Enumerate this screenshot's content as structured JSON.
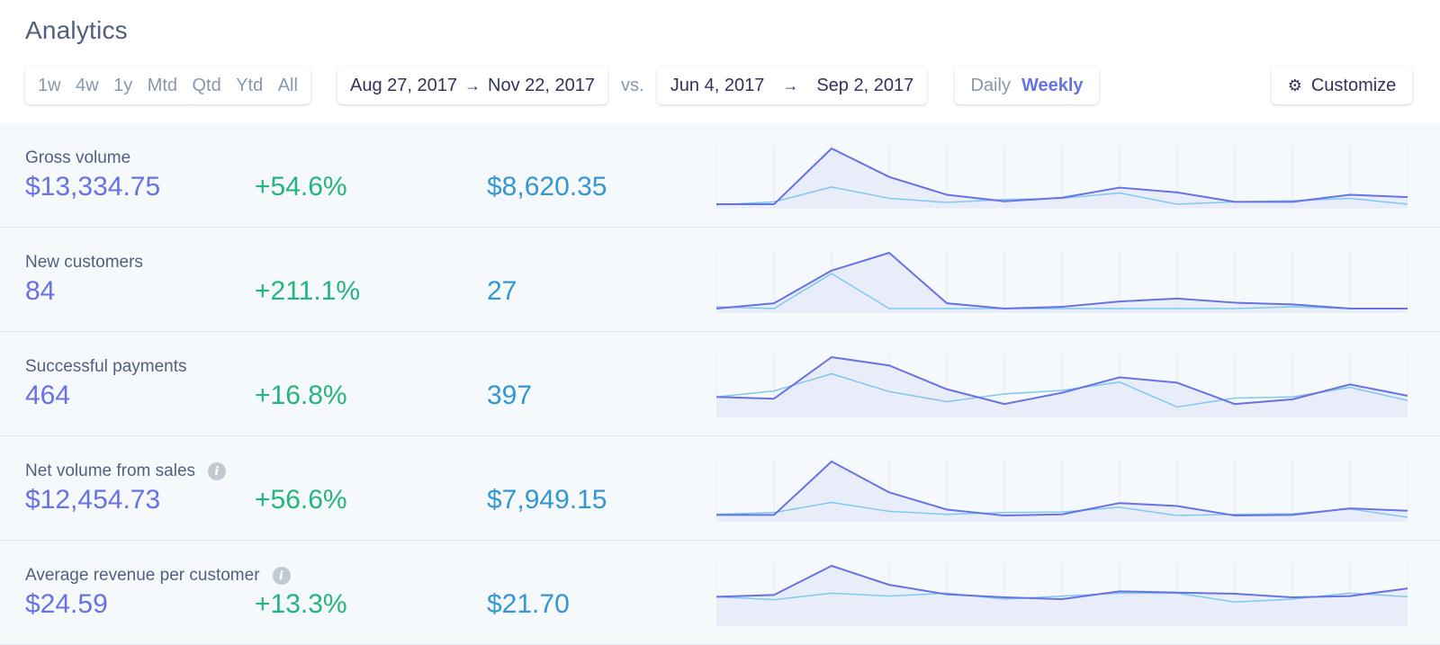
{
  "page": {
    "title": "Analytics"
  },
  "toolbar": {
    "ranges": [
      "1w",
      "4w",
      "1y",
      "Mtd",
      "Qtd",
      "Ytd",
      "All"
    ],
    "current_range": {
      "start": "Aug 27, 2017",
      "end": "Nov 22, 2017"
    },
    "vs_label": "vs.",
    "compare_range": {
      "start": "Jun 4, 2017",
      "end": "Sep 2, 2017"
    },
    "granularity": {
      "daily": "Daily",
      "weekly": "Weekly",
      "selected": "Weekly"
    },
    "customize_label": "Customize"
  },
  "colors": {
    "current_series": "#6772e5",
    "previous_series": "#7fc8f0",
    "area_fill": "#e6ebf8",
    "change_positive": "#24b47e",
    "previous_value": "#3297d3"
  },
  "metrics": [
    {
      "name": "Gross volume",
      "info": false,
      "current": "$13,334.75",
      "change": "+54.6%",
      "previous": "$8,620.35",
      "chart_data": {
        "type": "line",
        "series": [
          {
            "values": [
              0.06,
              0.06,
              1.0,
              0.52,
              0.22,
              0.11,
              0.17,
              0.34,
              0.26,
              0.1,
              0.1,
              0.22,
              0.18
            ]
          },
          {
            "values": [
              0.05,
              0.1,
              0.35,
              0.16,
              0.09,
              0.14,
              0.16,
              0.25,
              0.06,
              0.1,
              0.12,
              0.16,
              0.06
            ]
          }
        ]
      }
    },
    {
      "name": "New customers",
      "info": false,
      "current": "84",
      "change": "+211.1%",
      "previous": "27",
      "chart_data": {
        "type": "line",
        "series": [
          {
            "values": [
              0.06,
              0.15,
              0.7,
              1.0,
              0.15,
              0.06,
              0.09,
              0.18,
              0.23,
              0.16,
              0.13,
              0.06,
              0.06
            ]
          },
          {
            "values": [
              0.09,
              0.06,
              0.65,
              0.06,
              0.06,
              0.06,
              0.06,
              0.06,
              0.06,
              0.06,
              0.09,
              0.06,
              0.06
            ]
          }
        ]
      }
    },
    {
      "name": "Successful payments",
      "info": false,
      "current": "464",
      "change": "+16.8%",
      "previous": "397",
      "chart_data": {
        "type": "line",
        "series": [
          {
            "values": [
              0.33,
              0.3,
              1.0,
              0.86,
              0.46,
              0.21,
              0.4,
              0.66,
              0.57,
              0.21,
              0.29,
              0.54,
              0.35
            ]
          },
          {
            "values": [
              0.33,
              0.43,
              0.72,
              0.42,
              0.25,
              0.38,
              0.44,
              0.58,
              0.16,
              0.31,
              0.33,
              0.49,
              0.27
            ]
          }
        ]
      }
    },
    {
      "name": "Net volume from sales",
      "info": true,
      "current": "$12,454.73",
      "change": "+56.6%",
      "previous": "$7,949.15",
      "chart_data": {
        "type": "line",
        "series": [
          {
            "values": [
              0.1,
              0.1,
              1.0,
              0.48,
              0.19,
              0.09,
              0.11,
              0.3,
              0.25,
              0.09,
              0.1,
              0.21,
              0.17
            ]
          },
          {
            "values": [
              0.11,
              0.14,
              0.31,
              0.16,
              0.11,
              0.14,
              0.15,
              0.23,
              0.09,
              0.11,
              0.12,
              0.2,
              0.06
            ]
          }
        ]
      }
    },
    {
      "name": "Average revenue per customer",
      "info": true,
      "current": "$24.59",
      "change": "+13.3%",
      "previous": "$21.70",
      "chart_data": {
        "type": "line",
        "series": [
          {
            "values": [
              0.48,
              0.51,
              1.0,
              0.68,
              0.52,
              0.47,
              0.44,
              0.57,
              0.55,
              0.53,
              0.47,
              0.49,
              0.62
            ]
          },
          {
            "values": [
              0.48,
              0.43,
              0.54,
              0.49,
              0.54,
              0.44,
              0.49,
              0.54,
              0.54,
              0.39,
              0.44,
              0.54,
              0.48
            ]
          }
        ]
      }
    }
  ]
}
